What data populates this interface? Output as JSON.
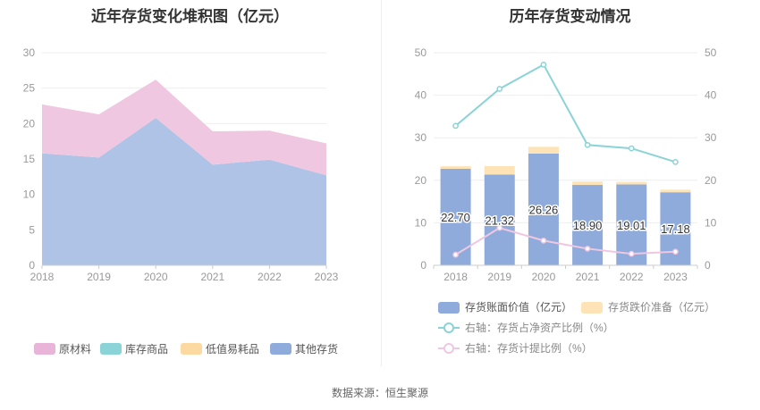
{
  "source_text": "数据来源：恒生聚源",
  "chart_data": [
    {
      "type": "area",
      "stacked": true,
      "title": "近年存货变化堆积图（亿元）",
      "x": [
        "2018",
        "2019",
        "2020",
        "2021",
        "2022",
        "2023"
      ],
      "ylim": [
        0,
        30
      ],
      "yticks": [
        "0",
        "5",
        "10",
        "15",
        "20",
        "25",
        "30"
      ],
      "grid": true,
      "legend_position": "bottom",
      "series": [
        {
          "name": "其他存货",
          "color": "#aec3e6",
          "legend_color": "#8fabdb",
          "values": [
            15.8,
            15.2,
            20.8,
            14.2,
            14.9,
            12.7
          ]
        },
        {
          "name": "低值易耗品",
          "color": "#fcd9a0",
          "legend_color": "#fcd9a0",
          "values": [
            0,
            0,
            0,
            0,
            0,
            0
          ]
        },
        {
          "name": "库存商品",
          "color": "#8ad3d6",
          "legend_color": "#8ad3d6",
          "values": [
            0,
            0,
            0,
            0,
            0,
            0
          ]
        },
        {
          "name": "原材料",
          "color": "#efc7e1",
          "legend_color": "#e8b4d8",
          "values": [
            6.9,
            6.1,
            5.4,
            4.7,
            4.1,
            4.5
          ]
        }
      ],
      "legend_order": [
        "原材料",
        "库存商品",
        "低值易耗品",
        "其他存货"
      ]
    },
    {
      "type": "bar",
      "stacked": true,
      "title": "历年存货变动情况",
      "x": [
        "2018",
        "2019",
        "2020",
        "2021",
        "2022",
        "2023"
      ],
      "ylim": [
        0,
        50
      ],
      "y2lim": [
        0,
        50
      ],
      "yticks": [
        "0",
        "10",
        "20",
        "30",
        "40",
        "50"
      ],
      "y2ticks": [
        "0",
        "10",
        "20",
        "30",
        "40",
        "50"
      ],
      "grid": true,
      "legend_position": "bottom",
      "series": [
        {
          "name": "存货账面价值（亿元）",
          "kind": "bar",
          "color": "#8fabdb",
          "values": [
            22.7,
            21.32,
            26.26,
            18.9,
            19.01,
            17.18
          ],
          "labels": [
            "22.70",
            "21.32",
            "26.26",
            "18.90",
            "19.01",
            "17.18"
          ]
        },
        {
          "name": "存货跌价准备（亿元）",
          "kind": "bar",
          "color": "#fde3b5",
          "values": [
            0.6,
            2.0,
            1.6,
            0.8,
            0.6,
            0.6
          ]
        },
        {
          "name": "右轴：存货占净资产比例（%）",
          "kind": "line",
          "axis": "right",
          "color": "#8ad3d6",
          "values": [
            32.8,
            41.5,
            47.2,
            28.3,
            27.5,
            24.3
          ]
        },
        {
          "name": "右轴：存货计提比例（%）",
          "kind": "line",
          "axis": "right",
          "color": "#efc7e1",
          "values": [
            2.5,
            8.8,
            5.8,
            3.9,
            2.7,
            3.2
          ]
        }
      ]
    }
  ]
}
